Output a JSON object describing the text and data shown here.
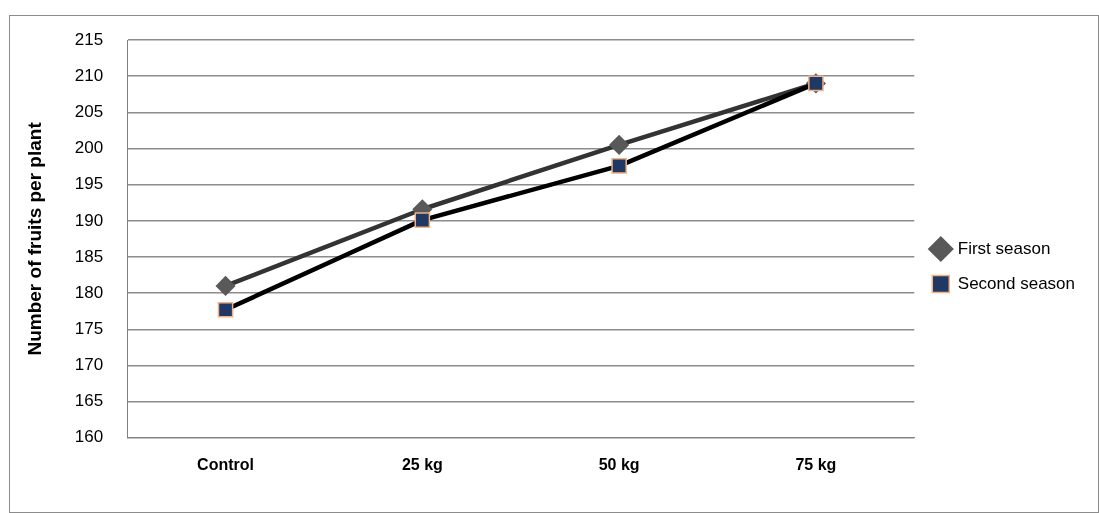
{
  "chart_data": {
    "type": "line",
    "ylabel": "Number of fruits per plant",
    "categories": [
      "Control",
      "25 kg",
      "50 kg",
      "75 kg"
    ],
    "series": [
      {
        "name": "First season",
        "color": "#333333",
        "marker": "diamond",
        "values": [
          181.0,
          191.6,
          200.5,
          209.0
        ]
      },
      {
        "name": "Second season",
        "color": "#000000",
        "marker": "square",
        "values": [
          177.7,
          190.1,
          197.6,
          209.0
        ]
      }
    ],
    "ylim": [
      160,
      215
    ],
    "yticks": [
      160,
      165,
      170,
      175,
      180,
      185,
      190,
      195,
      200,
      205,
      210,
      215
    ],
    "grid": "y",
    "legend": "right",
    "line_style": "solid"
  }
}
